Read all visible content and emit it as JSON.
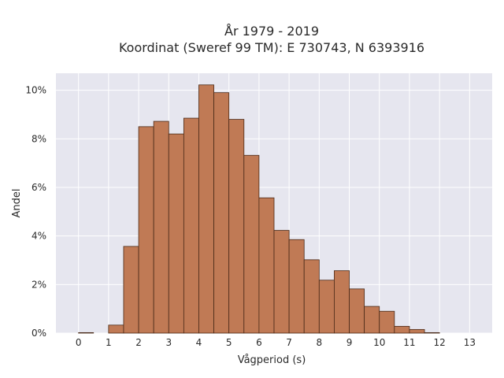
{
  "chart_data": {
    "type": "bar",
    "title_line1": "År 1979 - 2019",
    "title_line2": "Koordinat (Sweref 99 TM): E 730743, N 6393916",
    "xlabel": "Vågperiod (s)",
    "ylabel": "Andel",
    "xlim": [
      -0.75,
      13.75
    ],
    "ylim": [
      0,
      10.7
    ],
    "bin_width": 0.5,
    "x_ticks": [
      0,
      1,
      2,
      3,
      4,
      5,
      6,
      7,
      8,
      9,
      10,
      11,
      12,
      13
    ],
    "x_tick_labels": [
      "0",
      "1",
      "2",
      "3",
      "4",
      "5",
      "6",
      "7",
      "8",
      "9",
      "10",
      "11",
      "12",
      "13"
    ],
    "y_ticks": [
      0,
      2,
      4,
      6,
      8,
      10
    ],
    "y_tick_labels": [
      "0%",
      "2%",
      "4%",
      "6%",
      "8%",
      "10%"
    ],
    "bins": [
      {
        "x0": 0.0,
        "value": 0.02
      },
      {
        "x0": 1.0,
        "value": 0.33
      },
      {
        "x0": 1.5,
        "value": 3.57
      },
      {
        "x0": 2.0,
        "value": 8.5
      },
      {
        "x0": 2.5,
        "value": 8.72
      },
      {
        "x0": 3.0,
        "value": 8.2
      },
      {
        "x0": 3.5,
        "value": 8.85
      },
      {
        "x0": 4.0,
        "value": 10.22
      },
      {
        "x0": 4.5,
        "value": 9.9
      },
      {
        "x0": 5.0,
        "value": 8.8
      },
      {
        "x0": 5.5,
        "value": 7.32
      },
      {
        "x0": 6.0,
        "value": 5.57
      },
      {
        "x0": 6.5,
        "value": 4.23
      },
      {
        "x0": 7.0,
        "value": 3.85
      },
      {
        "x0": 7.5,
        "value": 3.02
      },
      {
        "x0": 8.0,
        "value": 2.18
      },
      {
        "x0": 8.5,
        "value": 2.57
      },
      {
        "x0": 9.0,
        "value": 1.82
      },
      {
        "x0": 9.5,
        "value": 1.1
      },
      {
        "x0": 10.0,
        "value": 0.9
      },
      {
        "x0": 10.5,
        "value": 0.28
      },
      {
        "x0": 11.0,
        "value": 0.15
      },
      {
        "x0": 11.5,
        "value": 0.02
      }
    ],
    "grid": true,
    "legend": "none",
    "colors": {
      "bar": "#c07a55",
      "bar_edge": "#4a2a18",
      "plot_bg": "#e6e6ef",
      "grid": "#ffffff"
    }
  }
}
